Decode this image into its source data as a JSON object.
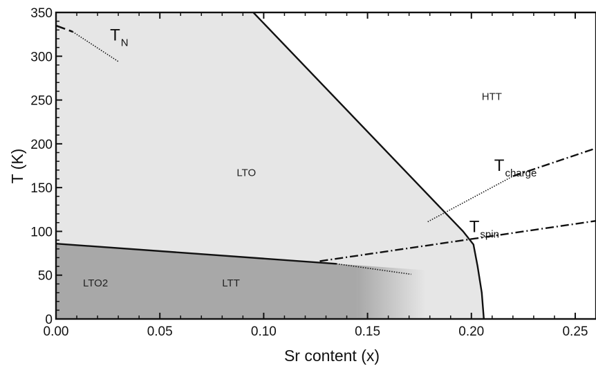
{
  "chart_data": {
    "type": "phase-diagram",
    "title": "",
    "xlabel": "Sr content  (x)",
    "ylabel": "T (K)",
    "xlim": [
      0.0,
      0.26
    ],
    "ylim": [
      0,
      350
    ],
    "x_ticks": [
      "0.00",
      "0.05",
      "0.10",
      "0.15",
      "0.20",
      "0.25"
    ],
    "y_ticks": [
      "0",
      "50",
      "100",
      "150",
      "200",
      "250",
      "300",
      "350"
    ],
    "colors": {
      "LTO": "#e6e6e6",
      "LTT": "#a8a8a8",
      "HTT": "#ffffff",
      "line": "#111111"
    },
    "regions": [
      {
        "label": "HTT",
        "x": 0.205,
        "y": 250
      },
      {
        "label": "LTO",
        "x": 0.087,
        "y": 163
      },
      {
        "label": "LTO2",
        "x": 0.013,
        "y": 37
      },
      {
        "label": "LTT",
        "x": 0.08,
        "y": 37
      }
    ],
    "boundaries": {
      "hto_lto": [
        [
          0.095,
          350
        ],
        [
          0.196,
          100
        ],
        [
          0.201,
          85
        ],
        [
          0.203,
          60
        ],
        [
          0.205,
          30
        ],
        [
          0.206,
          0
        ]
      ],
      "lto_ltt": [
        [
          0.0,
          86
        ],
        [
          0.135,
          63
        ]
      ],
      "lto_ltt_extrapolated": [
        [
          0.135,
          63
        ],
        [
          0.171,
          51
        ]
      ]
    },
    "lines": [
      {
        "name": "T",
        "subscript": "N",
        "style": "dashed",
        "points": [
          [
            0.0,
            335
          ],
          [
            0.008,
            328
          ]
        ],
        "label_x": 0.026,
        "label_y": 318
      },
      {
        "name": "T",
        "subscript": "N",
        "style": "dotted",
        "points": [
          [
            0.008,
            328
          ],
          [
            0.03,
            294
          ]
        ]
      },
      {
        "name": "T",
        "subscript": "charge",
        "style": "dashdot",
        "points": [
          [
            0.22,
            163
          ],
          [
            0.26,
            195
          ]
        ],
        "label_x": 0.211,
        "label_y": 169
      },
      {
        "name": "T",
        "subscript": "charge",
        "style": "dotted",
        "points": [
          [
            0.179,
            111
          ],
          [
            0.22,
            163
          ]
        ]
      },
      {
        "name": "T",
        "subscript": "spin",
        "style": "dashdot",
        "points": [
          [
            0.127,
            66
          ],
          [
            0.26,
            112
          ]
        ],
        "label_x": 0.199,
        "label_y": 99
      }
    ]
  }
}
